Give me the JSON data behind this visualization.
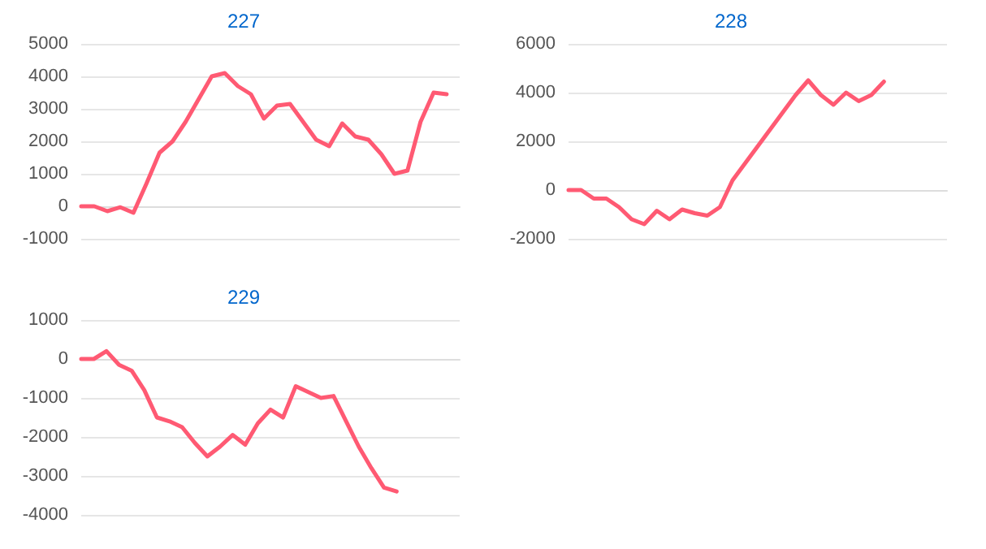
{
  "chart_data": [
    {
      "type": "line",
      "title": "227",
      "categories": [
        null,
        null,
        null,
        null,
        null,
        null,
        null,
        null,
        null,
        null,
        null,
        null,
        null,
        null,
        null,
        null,
        null,
        null,
        null,
        null,
        null,
        null,
        null,
        null,
        null,
        null,
        null,
        null,
        null,
        null
      ],
      "series": [
        {
          "color": "#ff5a73",
          "values": [
            0,
            0,
            -150,
            -30,
            -200,
            700,
            1650,
            2000,
            2600,
            3300,
            4000,
            4100,
            3700,
            3450,
            2700,
            3100,
            3150,
            2600,
            2050,
            1850,
            2550,
            2150,
            2050,
            1600,
            1000,
            1100,
            2600,
            3500,
            3450,
            null
          ]
        }
      ],
      "ylim": [
        -1000,
        5000
      ],
      "yticks": [
        -1000,
        0,
        1000,
        2000,
        3000,
        4000,
        5000
      ],
      "grid": "y",
      "tick_labels": "y",
      "marker": "none",
      "line_style": "solid"
    },
    {
      "type": "line",
      "title": "228",
      "categories": [
        null,
        null,
        null,
        null,
        null,
        null,
        null,
        null,
        null,
        null,
        null,
        null,
        null,
        null,
        null,
        null,
        null,
        null,
        null,
        null,
        null,
        null,
        null,
        null,
        null,
        null,
        null,
        null,
        null,
        null,
        null
      ],
      "series": [
        {
          "color": "#ff5a73",
          "values": [
            0,
            0,
            -350,
            -350,
            -700,
            -1200,
            -1400,
            -850,
            -1200,
            -800,
            -950,
            -1050,
            -700,
            400,
            1100,
            1800,
            2500,
            3200,
            3900,
            4500,
            3900,
            3500,
            4000,
            3650,
            3900,
            4450,
            null,
            null,
            null,
            null,
            null
          ]
        }
      ],
      "ylim": [
        -2000,
        6000
      ],
      "yticks": [
        -2000,
        0,
        2000,
        4000,
        6000
      ],
      "grid": "y",
      "tick_labels": "y",
      "marker": "none",
      "line_style": "solid"
    },
    {
      "type": "line",
      "title": "229",
      "categories": [
        null,
        null,
        null,
        null,
        null,
        null,
        null,
        null,
        null,
        null,
        null,
        null,
        null,
        null,
        null,
        null,
        null,
        null,
        null,
        null,
        null,
        null,
        null,
        null,
        null,
        null,
        null,
        null,
        null,
        null,
        null
      ],
      "series": [
        {
          "color": "#ff5a73",
          "values": [
            0,
            0,
            200,
            -150,
            -300,
            -800,
            -1500,
            -1600,
            -1750,
            -2150,
            -2500,
            -2250,
            -1950,
            -2200,
            -1650,
            -1300,
            -1500,
            -700,
            -850,
            -1000,
            -950,
            -1600,
            -2250,
            -2800,
            -3300,
            -3400,
            null,
            null,
            null,
            null,
            null
          ]
        }
      ],
      "ylim": [
        -4000,
        1000
      ],
      "yticks": [
        -4000,
        -3000,
        -2000,
        -1000,
        0,
        1000
      ],
      "grid": "y",
      "tick_labels": "y",
      "marker": "none",
      "line_style": "solid"
    }
  ]
}
